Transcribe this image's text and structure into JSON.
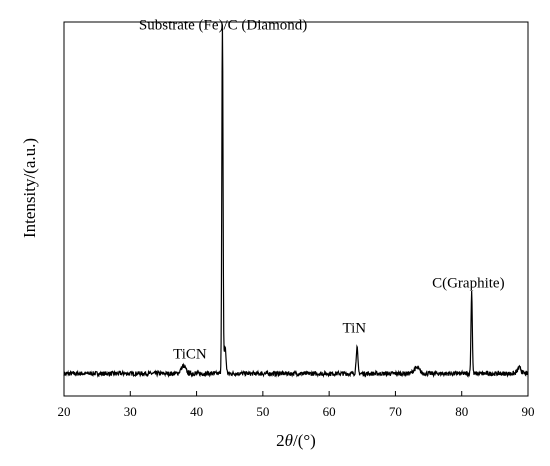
{
  "chart_data": {
    "type": "line",
    "title": "",
    "xlabel_prefix": "2",
    "xlabel_symbol": "θ",
    "xlabel_suffix": "/(°)",
    "ylabel": "Intensity/(a.u.)",
    "xlim": [
      20,
      90
    ],
    "ylim": [
      0,
      1
    ],
    "xticks": [
      "20",
      "30",
      "40",
      "50",
      "60",
      "70",
      "80",
      "90"
    ],
    "yticks": [],
    "grid": false,
    "series": [
      {
        "color": "#000000",
        "baseline": 0.06,
        "peaks": [
          {
            "x": 38.0,
            "height": 0.02,
            "width": 0.5
          },
          {
            "x": 43.9,
            "height": 0.93,
            "width": 0.13
          },
          {
            "x": 44.3,
            "height": 0.07,
            "width": 0.2
          },
          {
            "x": 64.2,
            "height": 0.07,
            "width": 0.18
          },
          {
            "x": 73.2,
            "height": 0.015,
            "width": 0.6
          },
          {
            "x": 81.5,
            "height": 0.22,
            "width": 0.14
          },
          {
            "x": 88.7,
            "height": 0.015,
            "width": 0.4
          }
        ]
      }
    ],
    "annotations": [
      {
        "text": "Substrate (Fe)/C (Diamond)",
        "x": 44.0,
        "y": 0.98
      },
      {
        "text": "TiCN",
        "x": 39.0,
        "y": 0.1
      },
      {
        "text": "TiN",
        "x": 63.8,
        "y": 0.17
      },
      {
        "text": "C(Graphite)",
        "x": 81.0,
        "y": 0.29
      }
    ]
  }
}
